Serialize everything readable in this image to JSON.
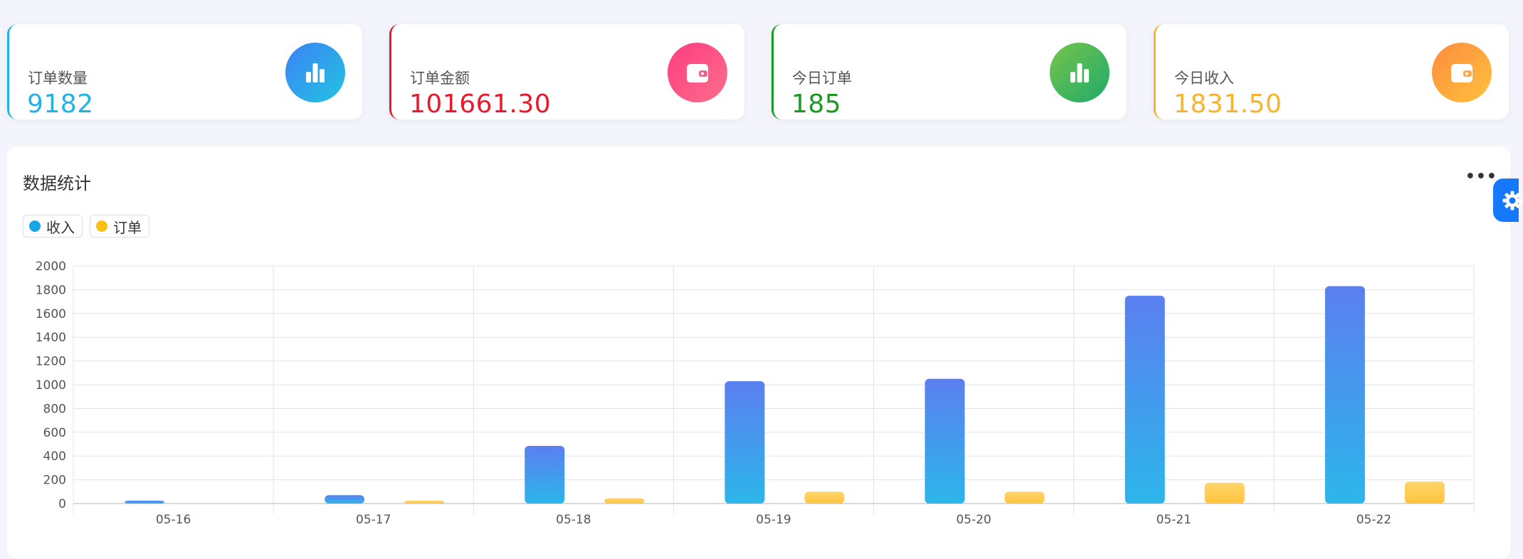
{
  "stats": [
    {
      "label": "订单数量",
      "value": "9182",
      "color": "#20b4e6",
      "icon": "bar-chart-icon",
      "grad": [
        "#23c4e0",
        "#3b82f6"
      ]
    },
    {
      "label": "订单金额",
      "value": "101661.30",
      "color": "#e8192c",
      "icon": "wallet-icon",
      "grad": [
        "#ff3d7f",
        "#fb6d8d"
      ]
    },
    {
      "label": "今日订单",
      "value": "185",
      "color": "#1b9a21",
      "icon": "bar-chart-icon",
      "grad": [
        "#1faa6b",
        "#76c44a"
      ]
    },
    {
      "label": "今日收入",
      "value": "1831.50",
      "color": "#f7b42c",
      "icon": "wallet-icon",
      "grad": [
        "#ffc23d",
        "#ff8b3d"
      ]
    }
  ],
  "panel": {
    "title": "数据统计",
    "more_label": "•••",
    "legend": [
      {
        "name": "收入",
        "color": "#1aa6e8"
      },
      {
        "name": "订单",
        "color": "#fbbf16"
      }
    ]
  },
  "settings_icon": "gear-icon",
  "chart_data": {
    "type": "bar",
    "categories": [
      "05-16",
      "05-17",
      "05-18",
      "05-19",
      "05-20",
      "05-21",
      "05-22"
    ],
    "series": [
      {
        "name": "收入",
        "values": [
          18,
          70,
          485,
          1030,
          1050,
          1750,
          1830
        ],
        "colors": [
          "#2cb6ea",
          "#5b7ff0"
        ]
      },
      {
        "name": "订单",
        "values": [
          0,
          5,
          45,
          100,
          100,
          175,
          185
        ],
        "colors": [
          "#ffc43e",
          "#ffd56b"
        ]
      }
    ],
    "ylim": [
      0,
      2000
    ],
    "yticks": [
      0,
      200,
      400,
      600,
      800,
      1000,
      1200,
      1400,
      1600,
      1800,
      2000
    ],
    "grid": true,
    "legend_position": "top-left"
  }
}
